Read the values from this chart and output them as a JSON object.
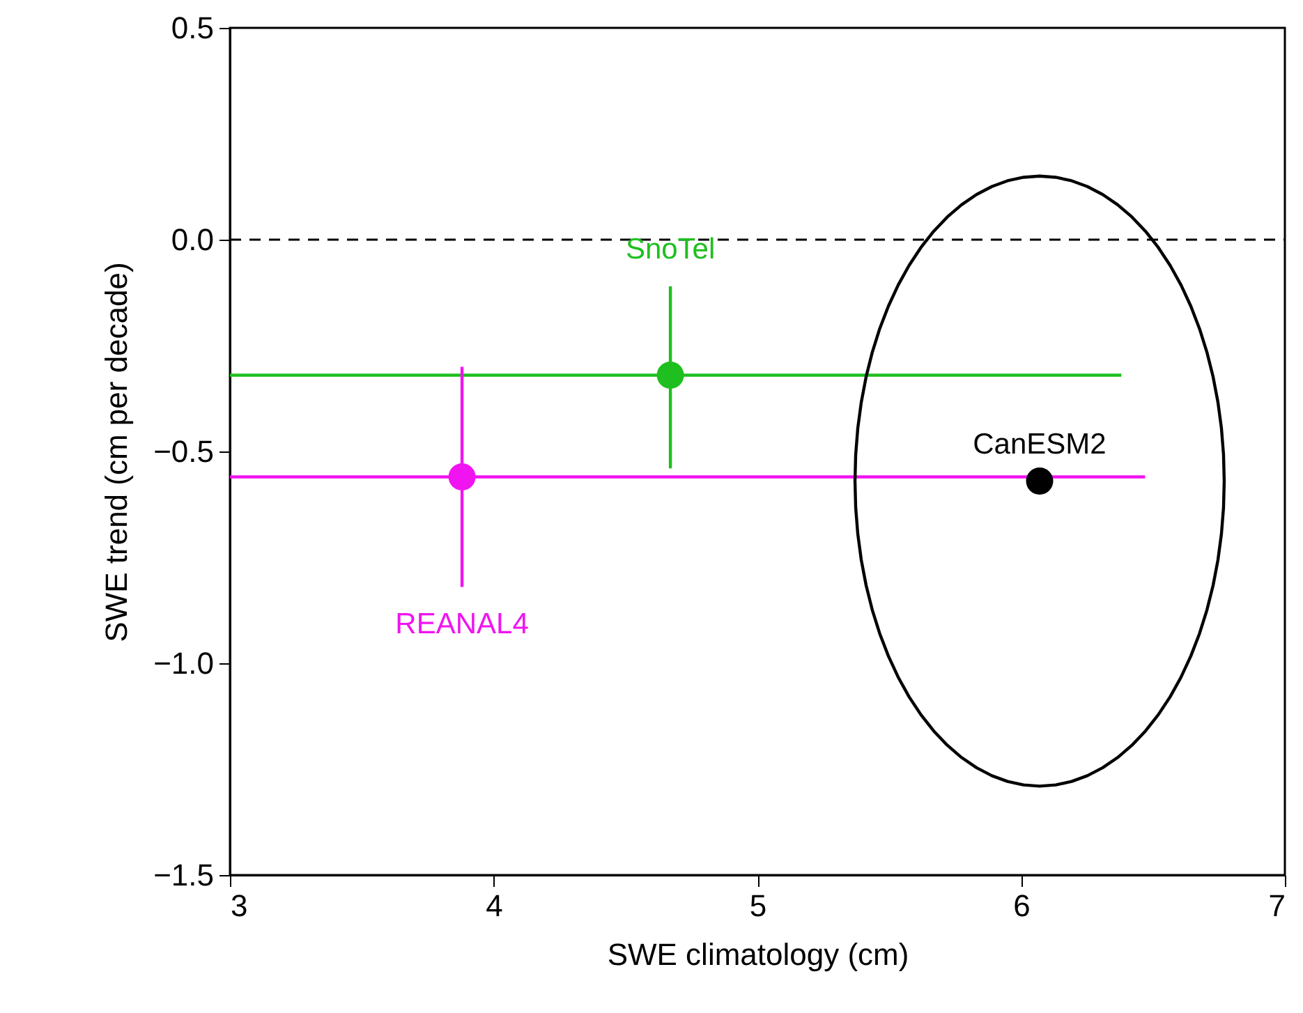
{
  "chart_data": {
    "type": "scatter",
    "xlabel": "SWE climatology (cm)",
    "ylabel": "SWE trend (cm per decade)",
    "xlim": [
      3,
      7
    ],
    "ylim": [
      -1.5,
      0.5
    ],
    "xticks": [
      3,
      4,
      5,
      6,
      7
    ],
    "yticks": [
      {
        "value": -1.5,
        "label": "−1.5"
      },
      {
        "value": -1.0,
        "label": "−1.0"
      },
      {
        "value": -0.5,
        "label": "−0.5"
      },
      {
        "value": 0,
        "label": "0.0"
      },
      0.5
    ],
    "grid": false,
    "marker": "circle",
    "ref_lines": [
      {
        "axis": "y",
        "value": 0,
        "color": "#000000",
        "line_style": "dashed"
      }
    ],
    "series": [
      {
        "name": "SnoTel",
        "color": "#1fbf1f",
        "x": [
          4.67
        ],
        "values": [
          -0.32
        ],
        "errors": [
          [
            -0.54,
            -0.11
          ]
        ],
        "xerrors": [
          [
            3.0,
            6.38
          ]
        ]
      },
      {
        "name": "REANAL4",
        "color": "#f014f0",
        "x": [
          3.88
        ],
        "values": [
          -0.56
        ],
        "errors": [
          [
            -0.82,
            -0.3
          ]
        ],
        "xerrors": [
          [
            3.0,
            6.47
          ]
        ]
      },
      {
        "name": "CanESM2",
        "color": "#000000",
        "x": [
          6.07
        ],
        "values": [
          -0.57
        ]
      }
    ]
  }
}
